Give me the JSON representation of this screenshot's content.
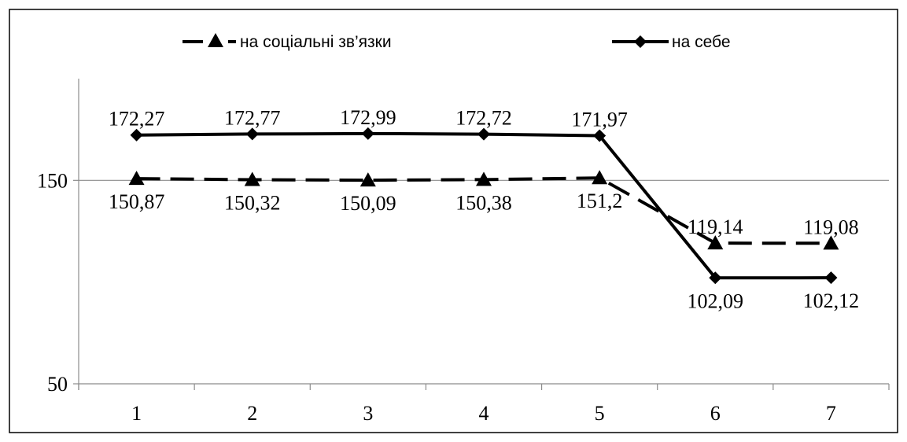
{
  "colors": {
    "line": "#000000",
    "gridline": "#8c8c8c",
    "axis": "#8c8c8c",
    "frame": "#000000"
  },
  "chart_data": {
    "type": "line",
    "title": "",
    "xlabel": "",
    "ylabel": "",
    "categories": [
      "1",
      "2",
      "3",
      "4",
      "5",
      "6",
      "7"
    ],
    "ylim": [
      50,
      200
    ],
    "yticks": [
      "50",
      "150"
    ],
    "grid": "horizontal",
    "legend_position": "top",
    "series": [
      {
        "name": "на соціальні зв’язки",
        "style": "dashed",
        "marker": "triangle-icon",
        "values": [
          150.87,
          150.32,
          150.09,
          150.38,
          151.2,
          119.14,
          119.08
        ],
        "labels": [
          "150,87",
          "150,32",
          "150,09",
          "150,38",
          "151,2",
          "119,14",
          "119,08"
        ],
        "label_position": [
          "below",
          "below",
          "below",
          "below",
          "below",
          "above",
          "above"
        ]
      },
      {
        "name": "на себе",
        "style": "solid",
        "marker": "diamond-icon",
        "values": [
          172.27,
          172.77,
          172.99,
          172.72,
          171.97,
          102.09,
          102.12
        ],
        "labels": [
          "172,27",
          "172,77",
          "172,99",
          "172,72",
          "171,97",
          "102,09",
          "102,12"
        ],
        "label_position": [
          "above",
          "above",
          "above",
          "above",
          "above",
          "below",
          "below"
        ]
      }
    ]
  }
}
